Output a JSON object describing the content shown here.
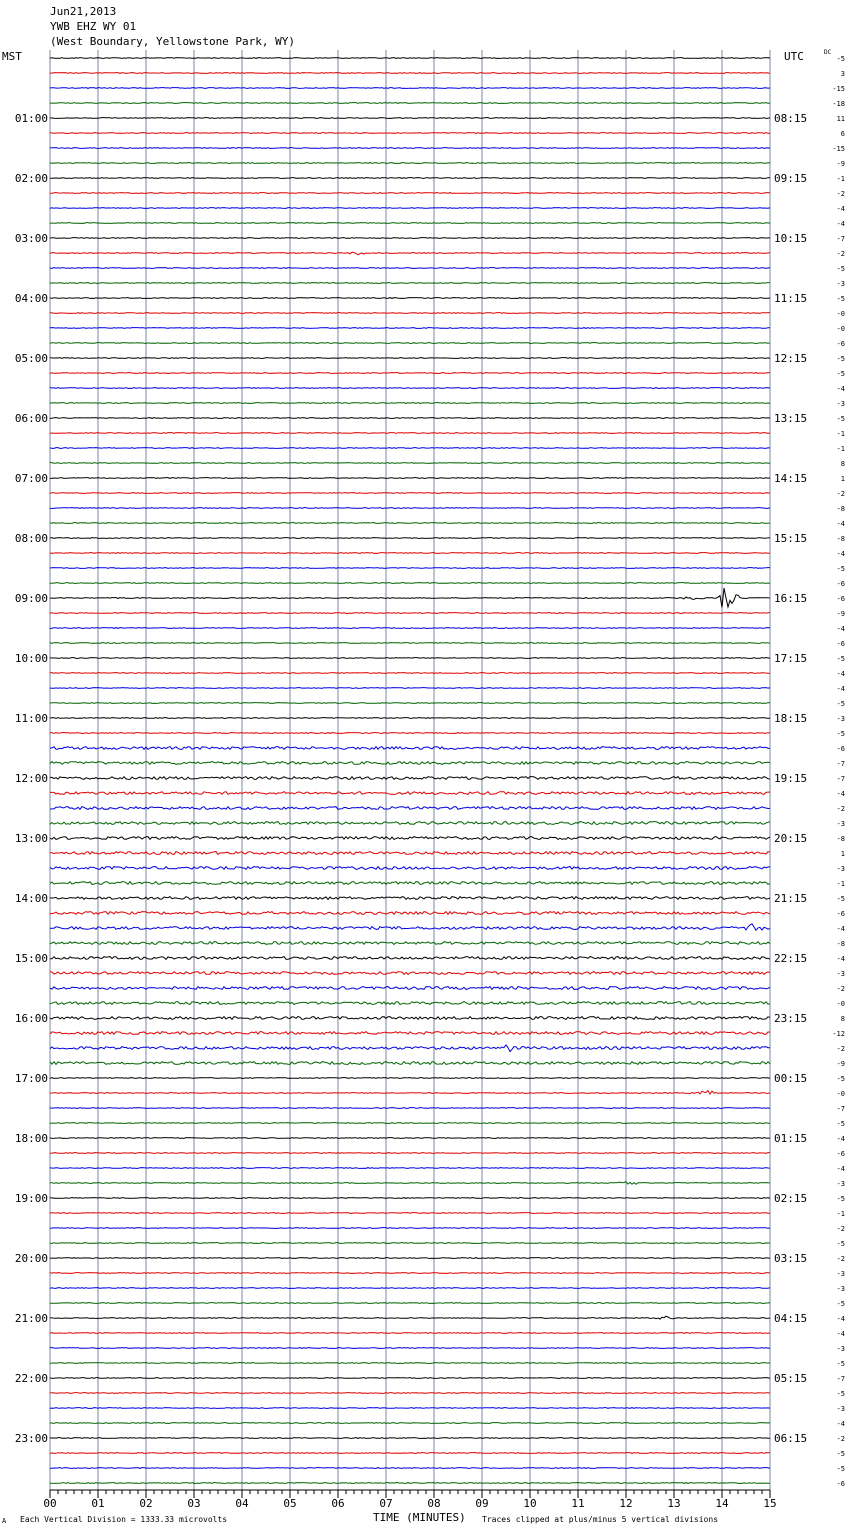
{
  "header": {
    "date": "Jun21,2013",
    "station": "YWB EHZ WY 01",
    "location": "(West Boundary, Yellowstone Park, WY)"
  },
  "left_tz": "MST",
  "right_tz": "UTC",
  "dc_label": "DC",
  "footer": {
    "scale_note": "Each Vertical Division = 1333.33 microvolts",
    "x_axis_label": "TIME (MINUTES)",
    "clip_note": "Traces clipped at plus/minus 5 vertical divisions",
    "mark": "A"
  },
  "colors": {
    "trace": [
      "#000000",
      "#e00000",
      "#0000e0",
      "#006400"
    ],
    "grid": "#7a8aa0"
  },
  "chart_data": {
    "type": "line",
    "title": "",
    "xlabel": "TIME (MINUTES)",
    "xlim": [
      0,
      15
    ],
    "x_ticks": [
      "00",
      "01",
      "02",
      "03",
      "04",
      "05",
      "06",
      "07",
      "08",
      "09",
      "10",
      "11",
      "12",
      "13",
      "14",
      "15"
    ],
    "rows_per_hour": 4,
    "left_hour_labels": [
      "01:00",
      "02:00",
      "03:00",
      "04:00",
      "05:00",
      "06:00",
      "07:00",
      "08:00",
      "09:00",
      "10:00",
      "11:00",
      "12:00",
      "13:00",
      "14:00",
      "15:00",
      "16:00",
      "17:00",
      "18:00",
      "19:00",
      "20:00",
      "21:00",
      "22:00",
      "23:00"
    ],
    "right_hour_labels": [
      "08:15",
      "09:15",
      "10:15",
      "11:15",
      "12:15",
      "13:15",
      "14:15",
      "15:15",
      "16:15",
      "17:15",
      "18:15",
      "19:15",
      "20:15",
      "21:15",
      "22:15",
      "23:15",
      "00:15",
      "01:15",
      "02:15",
      "03:15",
      "04:15",
      "05:15",
      "06:15"
    ],
    "dc_offsets": [
      "-5",
      "3",
      "-15",
      "-18",
      "11",
      "6",
      "-15",
      "-9",
      "-1",
      "-2",
      "-4",
      "-4",
      "-7",
      "-2",
      "-5",
      "-3",
      "-5",
      "-0",
      "-0",
      "-6",
      "-5",
      "-5",
      "-4",
      "-3",
      "-5",
      "-1",
      "-1",
      "8",
      "1",
      "-2",
      "-8",
      "-4",
      "-8",
      "-4",
      "-5",
      "-6",
      "-6",
      "-9",
      "-4",
      "-6",
      "-5",
      "-4",
      "-4",
      "-5",
      "-3",
      "-5",
      "-6",
      "-7",
      "-7",
      "-4",
      "-2",
      "-3",
      "-8",
      "1",
      "-3",
      "-1",
      "-5",
      "-6",
      "-4",
      "-8",
      "-4",
      "-3",
      "-2",
      "-0",
      "8",
      "-12",
      "-2",
      "-9",
      "-5",
      "-0",
      "-7",
      "-5",
      "-4",
      "-6",
      "-4",
      "-3",
      "-5",
      "-1",
      "-2",
      "-5",
      "-2",
      "-3",
      "-3",
      "-5",
      "-4",
      "-4",
      "-3",
      "-5",
      "-7",
      "-5",
      "-3",
      "-4",
      "-2",
      "-5",
      "-5",
      "-6"
    ],
    "events": [
      {
        "row": 36,
        "minute": 14.1,
        "amplitude": 16
      },
      {
        "row": 36,
        "minute": 13.4,
        "amplitude": 2
      },
      {
        "row": 13,
        "minute": 6.4,
        "amplitude": 2
      },
      {
        "row": 58,
        "minute": 14.6,
        "amplitude": 5
      },
      {
        "row": 69,
        "minute": 13.7,
        "amplitude": 3
      },
      {
        "row": 75,
        "minute": 12.1,
        "amplitude": 3
      },
      {
        "row": 84,
        "minute": 12.8,
        "amplitude": 3
      },
      {
        "row": 66,
        "minute": 9.6,
        "amplitude": 3
      }
    ]
  }
}
